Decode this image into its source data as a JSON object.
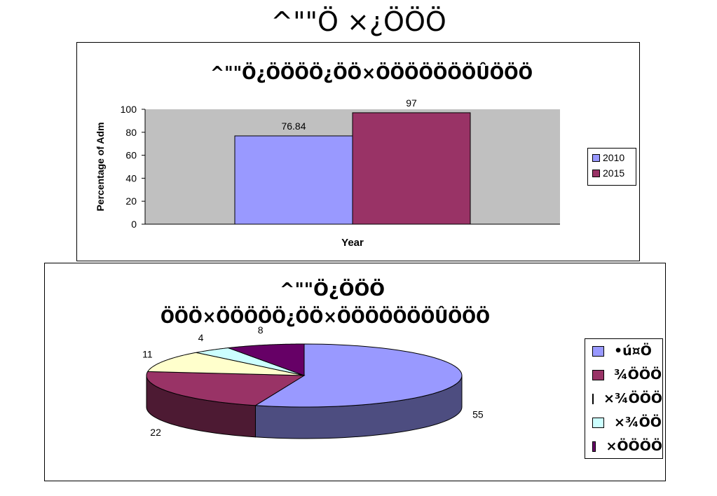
{
  "page_title": "^\"\"Ö ×¿ÖÖÖ",
  "chart_data": [
    {
      "type": "bar",
      "title": "^\"\"Ö¿ÖÖÖÖ¿ÖÖ×ÖÖÖÖÖÖÖÛÖÖÖ",
      "xlabel": "Year",
      "ylabel": "Percentage of Adm",
      "ylim": [
        0,
        100
      ],
      "yticks": [
        "0",
        "20",
        "40",
        "60",
        "80",
        "100"
      ],
      "categories": [
        ""
      ],
      "series": [
        {
          "name": "2010",
          "values": [
            76.84
          ],
          "label": "76.84",
          "color": "#9999FF"
        },
        {
          "name": "2015",
          "values": [
            97
          ],
          "label": "97",
          "color": "#993366"
        }
      ],
      "grid": false,
      "plot_background": "#C0C0C0",
      "legend_position": "right"
    },
    {
      "type": "pie",
      "title_line1": "^\"\"Ö¿ÖÖÖ",
      "title_line2": "ÖÖÖ×ÖÖÖÖÖ¿ÖÖ×ÖÖÖÖÖÖÖÛÖÖÖ",
      "slices": [
        {
          "name": "•ú¤Ö",
          "value": 55,
          "label": "55",
          "color": "#9999FF"
        },
        {
          "name": "¾ÖÖÖ",
          "value": 22,
          "label": "22",
          "color": "#993366"
        },
        {
          "name": "×¾ÖÖÖ",
          "value": 11,
          "label": "11",
          "color": "#FFFFCC"
        },
        {
          "name": "×¾ÖÖ",
          "value": 4,
          "label": "4",
          "color": "#CCFFFF"
        },
        {
          "name": "×ÖÖÖÖ",
          "value": 8,
          "label": "8",
          "color": "#660066"
        }
      ],
      "legend_position": "right"
    }
  ]
}
